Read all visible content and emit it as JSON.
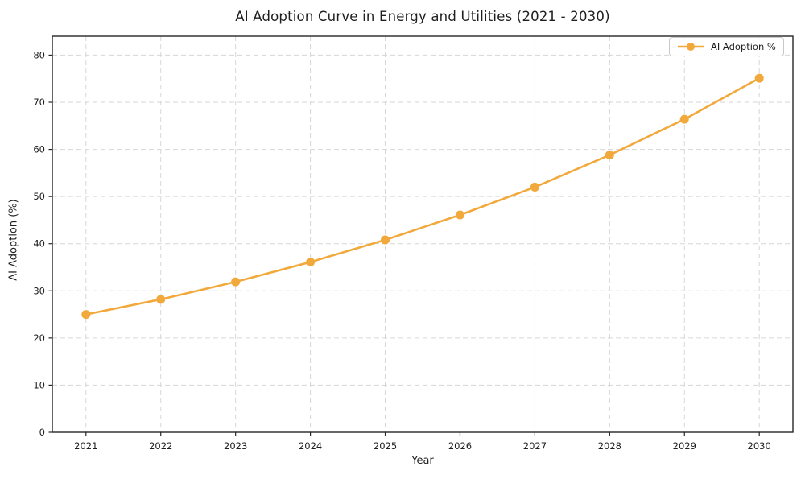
{
  "chart_data": {
    "type": "line",
    "title": "AI Adoption Curve in Energy and Utilities (2021 - 2030)",
    "xlabel": "Year",
    "ylabel": "AI Adoption (%)",
    "x": [
      2021,
      2022,
      2023,
      2024,
      2025,
      2026,
      2027,
      2028,
      2029,
      2030
    ],
    "series": [
      {
        "name": "AI Adoption %",
        "values": [
          25.0,
          28.2,
          31.9,
          36.1,
          40.8,
          46.1,
          52.0,
          58.8,
          66.4,
          75.1
        ],
        "color": "#F2A93C",
        "marker": "circle",
        "line_style": "solid"
      }
    ],
    "ylim": [
      0,
      84
    ],
    "yticks": [
      0,
      10,
      20,
      30,
      40,
      50,
      60,
      70,
      80
    ],
    "grid": true,
    "grid_style": "dashed",
    "legend": {
      "label": "AI Adoption %",
      "position": "upper-right"
    },
    "colors": {
      "accent": "#F2A93C",
      "grid": "#D6D6D6",
      "axis": "#262626",
      "text": "#1F1F1F",
      "background": "#FFFFFF"
    }
  }
}
